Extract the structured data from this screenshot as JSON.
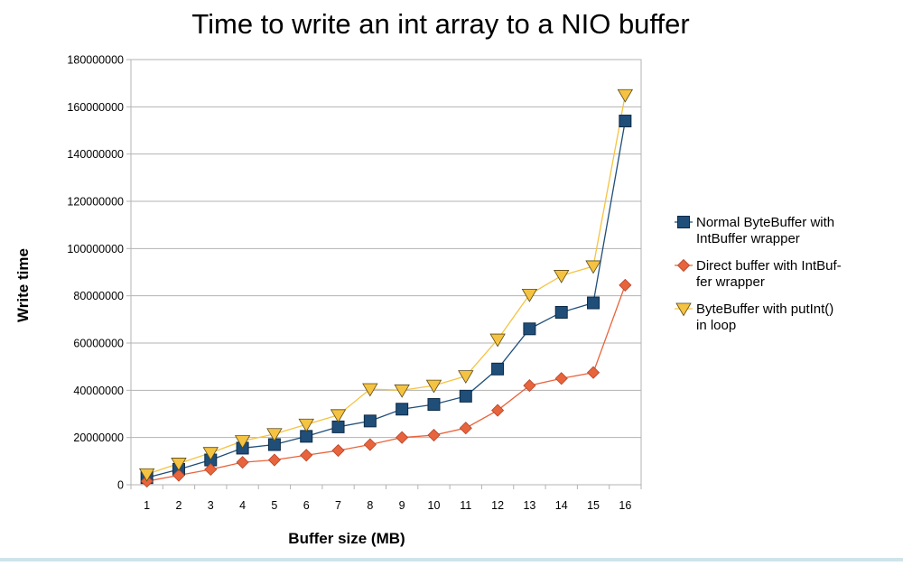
{
  "chart_data": {
    "type": "line",
    "title": "Time to write an int array to a NIO buffer",
    "xlabel": "Buffer size (MB)",
    "ylabel": "Write time",
    "categories": [
      "1",
      "2",
      "3",
      "4",
      "5",
      "6",
      "7",
      "8",
      "9",
      "10",
      "11",
      "12",
      "13",
      "14",
      "15",
      "16"
    ],
    "ylim": [
      0,
      180000000
    ],
    "yticks": [
      0,
      20000000,
      40000000,
      60000000,
      80000000,
      100000000,
      120000000,
      140000000,
      160000000,
      180000000
    ],
    "ytick_labels": [
      "0",
      "20000000",
      "40000000",
      "60000000",
      "80000000",
      "100000000",
      "120000000",
      "140000000",
      "160000000",
      "180000000"
    ],
    "grid": "horizontal",
    "legend_position": "right",
    "series": [
      {
        "name": "Normal ByteBuffer with IntBuffer wrapper",
        "name_lines": [
          "Normal ByteBuffer with",
          "IntBuffer wrapper"
        ],
        "color": "#1f4e79",
        "marker": "square",
        "values": [
          3000000,
          6500000,
          10500000,
          15500000,
          17000000,
          20500000,
          24500000,
          27000000,
          32000000,
          34000000,
          37500000,
          49000000,
          66000000,
          73000000,
          77000000,
          154000000
        ]
      },
      {
        "name": "Direct buffer with IntBuffer wrapper",
        "name_lines": [
          "Direct buffer with IntBuf-",
          "fer wrapper"
        ],
        "color": "#e8643c",
        "marker": "diamond",
        "values": [
          1500000,
          4000000,
          6500000,
          9500000,
          10500000,
          12500000,
          14500000,
          17000000,
          20000000,
          21000000,
          24000000,
          31500000,
          42000000,
          45000000,
          47500000,
          84500000
        ]
      },
      {
        "name": "ByteBuffer with putInt() in loop",
        "name_lines": [
          "ByteBuffer with putInt()",
          "in loop"
        ],
        "color": "#f5c342",
        "marker": "triangle-down",
        "values": [
          4500000,
          9000000,
          13500000,
          18500000,
          21500000,
          25500000,
          29500000,
          40500000,
          40000000,
          42000000,
          46000000,
          61500000,
          80500000,
          88500000,
          92500000,
          165000000
        ]
      }
    ]
  }
}
